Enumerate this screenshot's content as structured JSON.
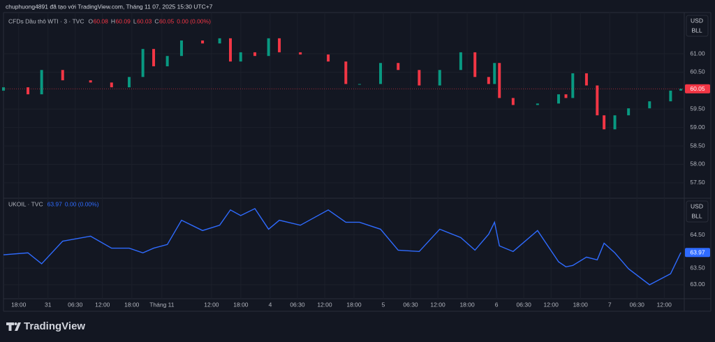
{
  "header": "chuphuong4891 đã tạo với TradingView.com, Tháng 11 07, 2025 15:30 UTC+7",
  "footer": "TradingView",
  "chart_data": [
    {
      "type": "candlestick",
      "title": "CFDs Dầu thô WTI · 3 · TVC",
      "legend": [
        {
          "label": "O",
          "value": 60.08
        },
        {
          "label": "H",
          "value": 60.09
        },
        {
          "label": "L",
          "value": 60.03
        },
        {
          "label": "C",
          "value": 60.05
        }
      ],
      "change": "0.00 (0.00%)",
      "currency": "USD",
      "unit": "BLL",
      "up_color": "#089981",
      "down_color": "#f23645",
      "grid": true,
      "x": [
        -3.1,
        1.9,
        4.7,
        9,
        14.7,
        19,
        22.6,
        25.4,
        27.6,
        30.4,
        33.3,
        37.6,
        41.1,
        43.3,
        45.4,
        48.3,
        51.1,
        53.3,
        57.6,
        63.3,
        66.9,
        69.7,
        74,
        77.6,
        81.9,
        86.1,
        90.4,
        93.3,
        96.1,
        97.3,
        98.3,
        101.1,
        106.1,
        110.4,
        111.9,
        113.3,
        116.1,
        118.3,
        119.7,
        121.9,
        124.7,
        129,
        133.3,
        135.4
      ],
      "open": [
        60.0,
        60.09,
        59.9,
        60.56,
        60.28,
        60.22,
        60.09,
        60.37,
        61.13,
        60.66,
        60.94,
        61.36,
        61.28,
        61.42,
        60.79,
        61.04,
        60.94,
        61.42,
        61.04,
        60.98,
        60.79,
        60.18,
        60.18,
        60.75,
        60.56,
        60.14,
        60.56,
        61.04,
        60.37,
        60.18,
        60.75,
        59.8,
        59.61,
        59.65,
        59.9,
        59.8,
        60.47,
        60.14,
        59.33,
        58.95,
        59.33,
        59.52,
        59.71,
        60.0
      ],
      "close": [
        60.09,
        59.9,
        60.56,
        60.28,
        60.22,
        60.09,
        60.37,
        61.13,
        60.66,
        60.94,
        61.36,
        61.28,
        61.42,
        60.79,
        61.04,
        60.94,
        61.42,
        61.04,
        60.98,
        60.79,
        60.18,
        60.18,
        60.75,
        60.56,
        60.14,
        60.56,
        61.04,
        60.37,
        60.18,
        60.75,
        59.8,
        59.61,
        59.65,
        59.9,
        59.8,
        60.47,
        60.14,
        59.33,
        58.95,
        59.33,
        59.52,
        59.71,
        60.0,
        60.05
      ],
      "xlim": [
        -3.1,
        136.1
      ],
      "ylim": [
        57.1,
        62.08
      ],
      "yticks": [
        {
          "value": 57.5,
          "label": "57.50"
        },
        {
          "value": 58,
          "label": "58.00"
        },
        {
          "value": 58.5,
          "label": "58.50"
        },
        {
          "value": 59,
          "label": "59.00"
        },
        {
          "value": 59.5,
          "label": "59.50"
        },
        {
          "value": 60.5,
          "label": "60.50"
        },
        {
          "value": 61,
          "label": "61.00"
        }
      ]
    },
    {
      "type": "line",
      "title": "UKOIL · TVC",
      "change": "0.00 (0.00%)",
      "currency": "USD",
      "unit": "BLL",
      "grid": true,
      "x": [
        -3.1,
        1.9,
        4.7,
        9,
        14.7,
        19,
        22.6,
        25.4,
        27.6,
        30.4,
        33.3,
        37.6,
        41.1,
        43.3,
        45.4,
        48.3,
        51.1,
        53.3,
        57.6,
        63.3,
        66.9,
        69.7,
        74,
        77.6,
        81.9,
        86.1,
        90.4,
        93.3,
        96.1,
        97.3,
        98.3,
        101.1,
        106.1,
        110.4,
        111.9,
        113.3,
        116.1,
        118.3,
        119.7,
        121.9,
        124.7,
        129,
        133.3,
        135.4
      ],
      "series": [
        {
          "name": "UKOIL",
          "color": "#2f6bff",
          "values": [
            63.9,
            63.96,
            63.63,
            64.31,
            64.46,
            64.1,
            64.1,
            63.96,
            64.1,
            64.21,
            64.94,
            64.63,
            64.79,
            65.25,
            65.08,
            65.29,
            64.67,
            64.94,
            64.79,
            65.25,
            64.88,
            64.88,
            64.67,
            64.04,
            64.0,
            64.67,
            64.42,
            64.04,
            64.52,
            64.88,
            64.17,
            64.0,
            64.63,
            63.69,
            63.54,
            63.58,
            63.83,
            63.75,
            64.25,
            63.96,
            63.48,
            63.0,
            63.33,
            63.97
          ]
        }
      ],
      "xlim": [
        -3.1,
        136.1
      ],
      "ylim": [
        62.58,
        65.56
      ],
      "yticks": [
        {
          "value": 63,
          "label": "63.00"
        },
        {
          "value": 63.5,
          "label": "63.50"
        },
        {
          "value": 64.5,
          "label": "64.50"
        }
      ],
      "xticks": [
        {
          "value": 0,
          "label": "18:00"
        },
        {
          "value": 6,
          "label": "31"
        },
        {
          "value": 11.57,
          "label": "06:30"
        },
        {
          "value": 17.14,
          "label": "12:00"
        },
        {
          "value": 23.14,
          "label": "18:00"
        },
        {
          "value": 29.29,
          "label": "Tháng 11"
        },
        {
          "value": 39.43,
          "label": "12:00"
        },
        {
          "value": 45.43,
          "label": "18:00"
        },
        {
          "value": 51.43,
          "label": "4"
        },
        {
          "value": 57,
          "label": "06:30"
        },
        {
          "value": 62.57,
          "label": "12:00"
        },
        {
          "value": 68.57,
          "label": "18:00"
        },
        {
          "value": 74.57,
          "label": "5"
        },
        {
          "value": 80.14,
          "label": "06:30"
        },
        {
          "value": 85.71,
          "label": "12:00"
        },
        {
          "value": 91.71,
          "label": "18:00"
        },
        {
          "value": 97.71,
          "label": "6"
        },
        {
          "value": 103.29,
          "label": "06:30"
        },
        {
          "value": 108.86,
          "label": "12:00"
        },
        {
          "value": 114.86,
          "label": "18:00"
        },
        {
          "value": 120.86,
          "label": "7"
        },
        {
          "value": 126.43,
          "label": "06:30"
        },
        {
          "value": 132,
          "label": "12:00"
        }
      ]
    }
  ]
}
